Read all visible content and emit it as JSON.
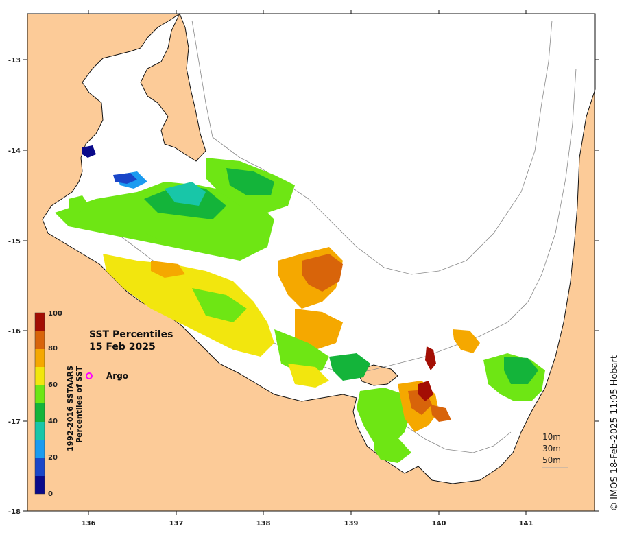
{
  "map": {
    "title_line1": "SST Percentiles",
    "title_line2": "15 Feb 2025",
    "lon_ticks": [
      "136",
      "137",
      "138",
      "139",
      "140",
      "141"
    ],
    "lat_ticks": [
      "-13",
      "-14",
      "-15",
      "-16",
      "-17",
      "-18"
    ],
    "legend_argo": "Argo",
    "depth_labels": [
      "10m",
      "30m",
      "50m"
    ],
    "credit": "© IMOS 18-Feb-2025 11:05 Hobart",
    "land_color": "#fccb98",
    "sea_color": "#ffffff"
  },
  "colorbar": {
    "title_line1": "1992-2016 SSTAARS",
    "title_line2": "Percentiles of SST",
    "tick_labels": [
      "0",
      "20",
      "40",
      "60",
      "80",
      "100"
    ],
    "colors": [
      "#0a0a8a",
      "#1a46c8",
      "#1b9bf0",
      "#18c6a8",
      "#14b43a",
      "#6ee614",
      "#f2e60e",
      "#f5a800",
      "#d8640a",
      "#a30e04"
    ]
  }
}
